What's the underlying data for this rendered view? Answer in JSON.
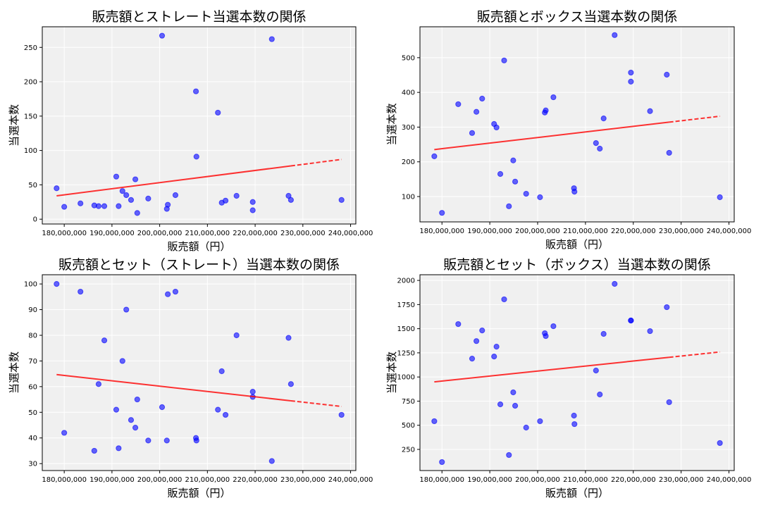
{
  "chart_data": [
    {
      "type": "scatter",
      "title": "販売額とストレート当選本数の関係",
      "xlabel": "販売額（円）",
      "ylabel": "当選本数",
      "xlim": [
        175400000,
        241100000
      ],
      "ylim": [
        -7,
        280
      ],
      "xticks": [
        180000000,
        190000000,
        200000000,
        210000000,
        220000000,
        230000000,
        240000000
      ],
      "xtick_labels": [
        "180,000,000",
        "190,000,000",
        "200,000,000",
        "210,000,000",
        "220,000,000",
        "230,000,000",
        "240,000,000"
      ],
      "yticks": [
        0,
        50,
        100,
        150,
        200,
        250
      ],
      "grid": true,
      "trendline": true,
      "x": [
        178400000,
        180000000,
        183400000,
        186300000,
        187200000,
        188400000,
        190900000,
        191400000,
        192200000,
        193000000,
        194000000,
        194900000,
        195300000,
        197600000,
        200500000,
        201500000,
        201700000,
        203300000,
        207600000,
        207700000,
        212200000,
        213000000,
        213800000,
        216100000,
        219500000,
        219500000,
        223500000,
        227000000,
        227500000,
        238100000
      ],
      "y": [
        45,
        18,
        23,
        20,
        19,
        19,
        62,
        19,
        41,
        35,
        28,
        58,
        9,
        30,
        267,
        15,
        21,
        35,
        186,
        91,
        155,
        24,
        27,
        34,
        25,
        13,
        262,
        34,
        28,
        28
      ]
    },
    {
      "type": "scatter",
      "title": "販売額とボックス当選本数の関係",
      "xlabel": "販売額（円）",
      "ylabel": "当選本数",
      "xlim": [
        175400000,
        241100000
      ],
      "ylim": [
        27,
        589
      ],
      "xticks": [
        180000000,
        190000000,
        200000000,
        210000000,
        220000000,
        230000000,
        240000000
      ],
      "xtick_labels": [
        "180,000,000",
        "190,000,000",
        "200,000,000",
        "210,000,000",
        "220,000,000",
        "230,000,000",
        "240,000,000"
      ],
      "yticks": [
        100,
        200,
        300,
        400,
        500
      ],
      "grid": true,
      "trendline": true,
      "x": [
        178400000,
        180000000,
        183400000,
        186300000,
        187200000,
        188400000,
        190900000,
        191400000,
        192200000,
        193000000,
        194000000,
        194900000,
        195300000,
        197600000,
        200500000,
        201500000,
        201700000,
        203300000,
        207600000,
        207700000,
        212200000,
        213000000,
        213800000,
        216100000,
        219500000,
        219500000,
        223500000,
        227000000,
        227500000,
        238100000
      ],
      "y": [
        216,
        53,
        366,
        283,
        344,
        382,
        309,
        299,
        165,
        492,
        72,
        204,
        143,
        108,
        98,
        342,
        348,
        386,
        124,
        114,
        254,
        238,
        325,
        565,
        457,
        431,
        346,
        451,
        226,
        98
      ]
    },
    {
      "type": "scatter",
      "title": "販売額とセット（ストレート）当選本数の関係",
      "xlabel": "販売額（円）",
      "ylabel": "当選本数",
      "xlim": [
        175400000,
        241100000
      ],
      "ylim": [
        27.3,
        103.6
      ],
      "xticks": [
        180000000,
        190000000,
        200000000,
        210000000,
        220000000,
        230000000,
        240000000
      ],
      "xtick_labels": [
        "180,000,000",
        "190,000,000",
        "200,000,000",
        "210,000,000",
        "220,000,000",
        "230,000,000",
        "240,000,000"
      ],
      "yticks": [
        30,
        40,
        50,
        60,
        70,
        80,
        90,
        100
      ],
      "grid": true,
      "trendline": true,
      "x": [
        178400000,
        180000000,
        183400000,
        186300000,
        187200000,
        188400000,
        190900000,
        191400000,
        192200000,
        193000000,
        194000000,
        194900000,
        195300000,
        197600000,
        200500000,
        201500000,
        201700000,
        203300000,
        207600000,
        207700000,
        212200000,
        213000000,
        213800000,
        216100000,
        219500000,
        219500000,
        223500000,
        227000000,
        227500000,
        238100000
      ],
      "y": [
        100,
        42,
        97,
        35,
        61,
        78,
        51,
        36,
        70,
        90,
        47,
        44,
        55,
        39,
        52,
        39,
        96,
        97,
        40,
        39,
        51,
        66,
        49,
        80,
        58,
        56,
        31,
        79,
        61,
        49
      ]
    },
    {
      "type": "scatter",
      "title": "販売額とセット（ボックス）当選本数の関係",
      "xlabel": "販売額（円）",
      "ylabel": "当選本数",
      "xlim": [
        175400000,
        241100000
      ],
      "ylim": [
        31,
        2059
      ],
      "xticks": [
        180000000,
        190000000,
        200000000,
        210000000,
        220000000,
        230000000,
        240000000
      ],
      "xtick_labels": [
        "180,000,000",
        "190,000,000",
        "200,000,000",
        "210,000,000",
        "220,000,000",
        "230,000,000",
        "240,000,000"
      ],
      "yticks": [
        250,
        500,
        750,
        1000,
        1250,
        1500,
        1750,
        2000
      ],
      "grid": true,
      "trendline": true,
      "x": [
        178400000,
        180000000,
        183400000,
        186300000,
        187200000,
        188400000,
        190900000,
        191400000,
        192200000,
        193000000,
        194000000,
        194900000,
        195300000,
        197600000,
        200500000,
        201500000,
        201700000,
        203300000,
        207600000,
        207700000,
        212200000,
        213000000,
        213800000,
        216100000,
        219500000,
        219500000,
        223500000,
        227000000,
        227500000,
        238100000
      ],
      "y": [
        542,
        119,
        1548,
        1190,
        1372,
        1482,
        1212,
        1314,
        717,
        1804,
        192,
        841,
        702,
        476,
        542,
        1453,
        1424,
        1526,
        600,
        512,
        1067,
        819,
        1446,
        1964,
        1585,
        1585,
        1475,
        1723,
        739,
        316
      ]
    }
  ],
  "colors": {
    "points": "#0000ff",
    "trendline": "#ff0000",
    "plot_background": "#f0f0f0",
    "grid": "#ffffff"
  }
}
